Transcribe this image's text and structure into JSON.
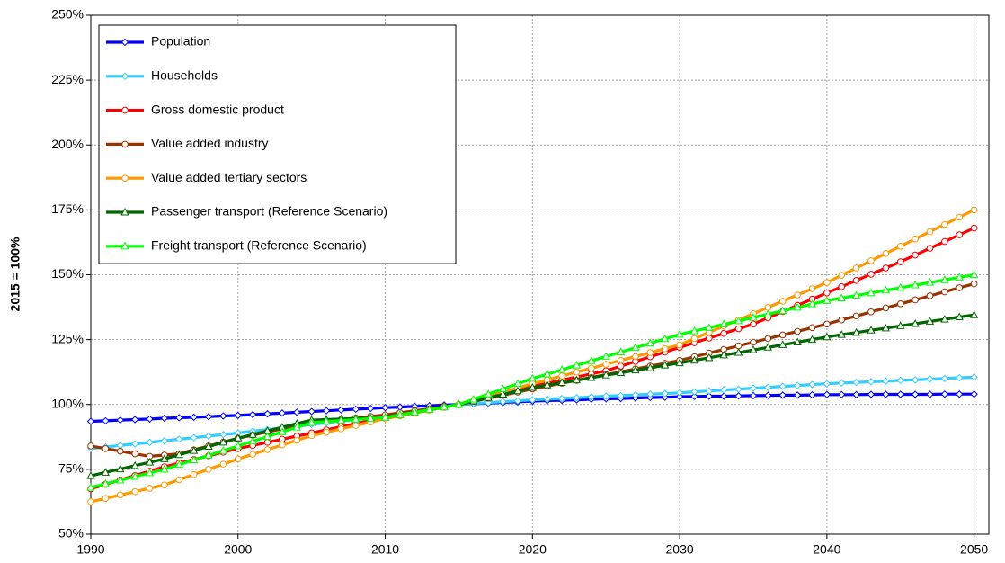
{
  "chart_data": {
    "type": "line",
    "y_label": "2015 = 100%",
    "x": [
      1990,
      1991,
      1992,
      1993,
      1994,
      1995,
      1996,
      1997,
      1998,
      1999,
      2000,
      2001,
      2002,
      2003,
      2004,
      2005,
      2006,
      2007,
      2008,
      2009,
      2010,
      2011,
      2012,
      2013,
      2014,
      2015,
      2016,
      2017,
      2018,
      2019,
      2020,
      2021,
      2022,
      2023,
      2024,
      2025,
      2026,
      2027,
      2028,
      2029,
      2030,
      2031,
      2032,
      2033,
      2034,
      2035,
      2036,
      2037,
      2038,
      2039,
      2040,
      2041,
      2042,
      2043,
      2044,
      2045,
      2046,
      2047,
      2048,
      2049,
      2050
    ],
    "xlim": [
      1990,
      2051
    ],
    "xticks": [
      1990,
      2000,
      2010,
      2020,
      2030,
      2040,
      2050
    ],
    "ylim": [
      50,
      250
    ],
    "yticks": [
      {
        "value": 50,
        "label": "50%"
      },
      {
        "value": 75,
        "label": "75%"
      },
      {
        "value": 100,
        "label": "100%"
      },
      {
        "value": 125,
        "label": "125%"
      },
      {
        "value": 150,
        "label": "150%"
      },
      {
        "value": 175,
        "label": "175%"
      },
      {
        "value": 200,
        "label": "200%"
      },
      {
        "value": 225,
        "label": "225%"
      },
      {
        "value": 250,
        "label": "250%"
      }
    ],
    "grid": true,
    "legend": "upper left",
    "series": [
      {
        "name": "Population",
        "color": "#0000ff",
        "marker": "diamond",
        "values": [
          93.5,
          93.7,
          94.0,
          94.2,
          94.4,
          94.7,
          94.9,
          95.1,
          95.3,
          95.6,
          95.8,
          96.1,
          96.4,
          96.7,
          97.0,
          97.3,
          97.6,
          97.9,
          98.2,
          98.5,
          98.8,
          99.0,
          99.3,
          99.5,
          99.8,
          100.0,
          100.3,
          100.5,
          100.8,
          101.0,
          101.3,
          101.5,
          101.6,
          101.8,
          102.0,
          102.2,
          102.3,
          102.5,
          102.7,
          102.8,
          103.0,
          103.1,
          103.2,
          103.2,
          103.3,
          103.4,
          103.5,
          103.6,
          103.6,
          103.7,
          103.8,
          103.8,
          103.8,
          103.9,
          103.9,
          103.9,
          103.9,
          103.9,
          104.0,
          104.0,
          104.0
        ]
      },
      {
        "name": "Households",
        "color": "#33ccff",
        "marker": "diamond",
        "values": [
          83.0,
          83.6,
          84.2,
          84.8,
          85.4,
          86.0,
          86.6,
          87.2,
          87.8,
          88.4,
          89.0,
          89.7,
          90.3,
          91.0,
          91.6,
          92.3,
          92.9,
          93.6,
          94.2,
          94.9,
          95.5,
          96.4,
          97.3,
          98.2,
          99.1,
          100.0,
          100.4,
          100.7,
          101.1,
          101.4,
          101.8,
          102.1,
          102.3,
          102.6,
          102.9,
          103.2,
          103.4,
          103.7,
          104.0,
          104.2,
          104.5,
          104.9,
          105.2,
          105.6,
          105.9,
          106.3,
          106.6,
          107.0,
          107.3,
          107.7,
          108.0,
          108.3,
          108.5,
          108.8,
          109.0,
          109.3,
          109.5,
          109.8,
          110.0,
          110.3,
          110.5
        ]
      },
      {
        "name": "Gross domestic product",
        "color": "#ff0000",
        "marker": "circle",
        "values": [
          67.5,
          69.2,
          70.9,
          72.6,
          74.3,
          76.0,
          77.4,
          78.8,
          80.2,
          81.6,
          83.0,
          84.2,
          85.4,
          86.6,
          87.8,
          89.0,
          90.2,
          91.4,
          92.6,
          93.8,
          95.0,
          96.0,
          97.0,
          98.0,
          99.0,
          100.0,
          101.4,
          102.8,
          104.2,
          105.6,
          107.0,
          108.2,
          109.4,
          110.6,
          111.8,
          113.0,
          114.8,
          116.6,
          118.4,
          120.2,
          122.0,
          123.8,
          125.6,
          127.4,
          129.2,
          131.0,
          133.4,
          135.8,
          138.2,
          140.6,
          143.0,
          145.4,
          147.8,
          150.2,
          152.6,
          155.0,
          157.6,
          160.2,
          162.8,
          165.4,
          168.0
        ]
      },
      {
        "name": "Value added industry",
        "color": "#993300",
        "marker": "circle",
        "values": [
          84.0,
          83.0,
          82.0,
          81.0,
          80.0,
          80.5,
          81.0,
          82.5,
          84.0,
          85.5,
          87.0,
          88.2,
          89.4,
          90.6,
          91.8,
          93.0,
          93.6,
          94.2,
          94.8,
          95.4,
          96.0,
          96.8,
          97.6,
          98.4,
          99.2,
          100.0,
          101.2,
          102.4,
          103.6,
          104.8,
          106.0,
          107.1,
          108.2,
          109.3,
          110.4,
          111.5,
          112.6,
          113.7,
          114.8,
          115.9,
          117.0,
          118.4,
          119.8,
          121.2,
          122.6,
          124.0,
          125.4,
          126.8,
          128.2,
          129.6,
          131.0,
          132.6,
          134.1,
          135.7,
          137.2,
          138.8,
          140.3,
          141.9,
          143.4,
          145.0,
          146.5
        ]
      },
      {
        "name": "Value added tertiary sectors",
        "color": "#ff9900",
        "marker": "circle",
        "values": [
          62.5,
          63.8,
          65.1,
          66.4,
          67.7,
          69.0,
          71.0,
          73.0,
          75.0,
          77.0,
          79.0,
          80.8,
          82.6,
          84.4,
          86.2,
          88.0,
          89.3,
          90.6,
          91.9,
          93.2,
          94.5,
          95.6,
          96.7,
          97.8,
          98.9,
          100.0,
          101.6,
          103.2,
          104.8,
          106.4,
          108.0,
          109.5,
          111.0,
          112.5,
          114.0,
          115.5,
          117.0,
          118.5,
          120.0,
          121.5,
          123.0,
          125.4,
          127.8,
          130.2,
          132.6,
          135.0,
          137.4,
          139.8,
          142.2,
          144.6,
          147.0,
          149.8,
          152.6,
          155.4,
          158.2,
          161.0,
          163.8,
          166.6,
          169.4,
          172.2,
          175.0
        ]
      },
      {
        "name": "Passenger transport (Reference Scenario)",
        "color": "#006600",
        "marker": "triangle",
        "values": [
          72.5,
          73.8,
          75.1,
          76.4,
          77.7,
          79.0,
          80.6,
          82.2,
          83.8,
          85.4,
          87.0,
          88.4,
          89.8,
          91.2,
          92.6,
          94.0,
          94.2,
          94.4,
          94.6,
          94.8,
          95.0,
          96.0,
          97.0,
          98.0,
          99.0,
          100.0,
          101.3,
          102.6,
          103.9,
          105.2,
          106.5,
          107.5,
          108.4,
          109.4,
          110.3,
          111.3,
          112.2,
          113.2,
          114.1,
          115.1,
          116.0,
          117.0,
          118.0,
          119.0,
          120.0,
          121.0,
          122.0,
          123.0,
          124.0,
          125.0,
          126.0,
          126.9,
          127.7,
          128.6,
          129.4,
          130.3,
          131.1,
          132.0,
          132.8,
          133.7,
          134.5
        ]
      },
      {
        "name": "Freight transport (Reference Scenario)",
        "color": "#00ff00",
        "marker": "triangle",
        "values": [
          68.0,
          69.4,
          70.8,
          72.2,
          73.6,
          75.0,
          76.8,
          78.6,
          80.4,
          82.2,
          84.0,
          85.8,
          87.6,
          89.4,
          91.2,
          93.0,
          93.4,
          93.8,
          94.2,
          94.6,
          95.0,
          96.0,
          97.0,
          98.0,
          99.0,
          100.0,
          102.0,
          104.0,
          106.0,
          108.0,
          110.0,
          111.7,
          113.4,
          115.1,
          116.8,
          118.5,
          120.2,
          121.9,
          123.6,
          125.3,
          127.0,
          128.3,
          129.6,
          130.9,
          132.2,
          133.5,
          134.8,
          136.1,
          137.4,
          138.7,
          140.0,
          141.0,
          142.0,
          143.0,
          144.0,
          145.0,
          146.0,
          147.0,
          148.0,
          149.0,
          150.0
        ]
      }
    ]
  }
}
